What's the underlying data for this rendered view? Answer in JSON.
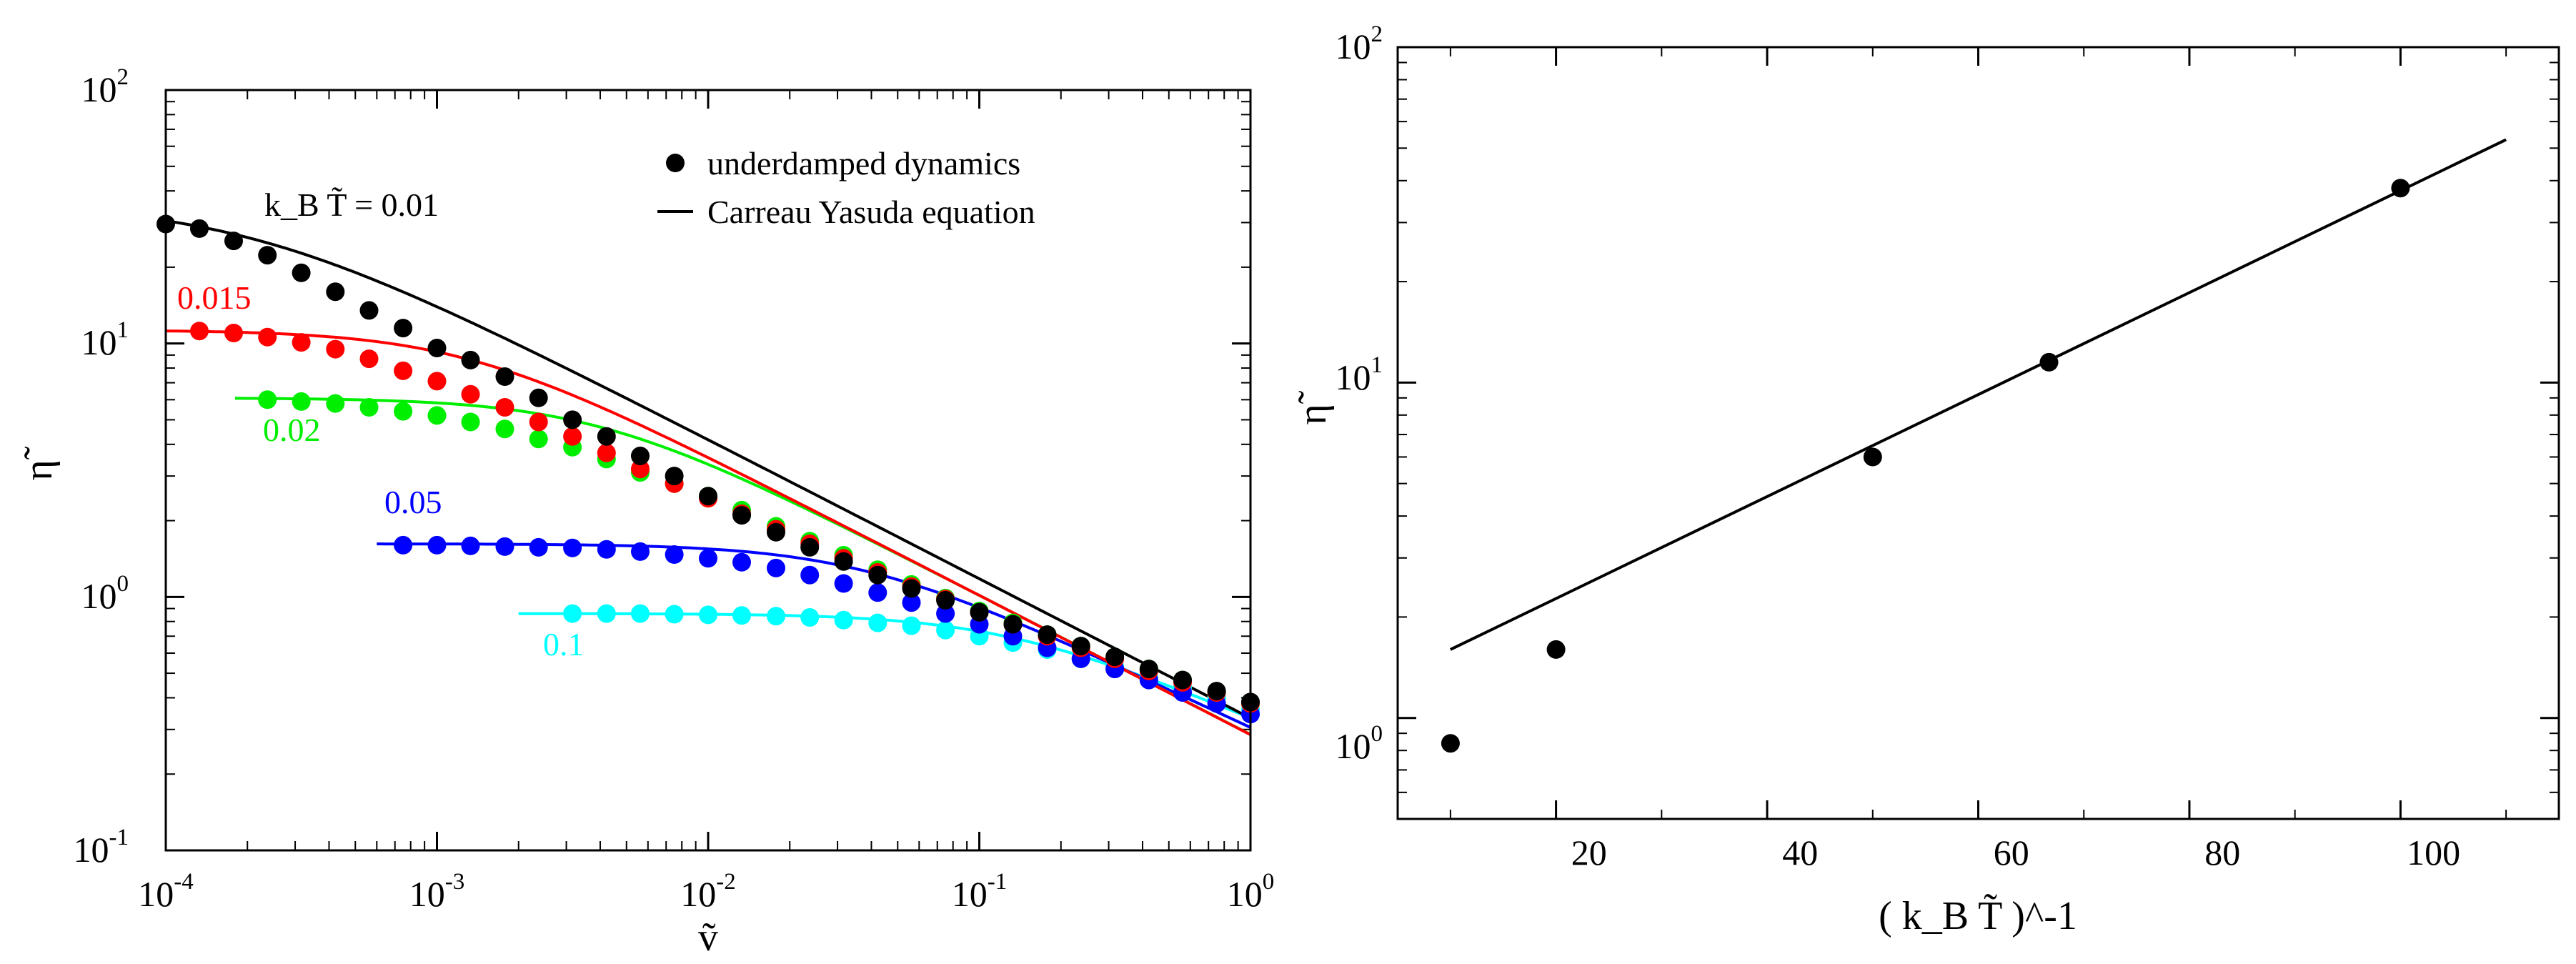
{
  "chart_data": [
    {
      "type": "line",
      "scale": {
        "x": "log",
        "y": "log"
      },
      "xlim": [
        0.0001,
        1
      ],
      "ylim": [
        0.1,
        100
      ],
      "xlabel": "ṽ",
      "ylabel": "η̃",
      "x_ticks": [
        {
          "base": "10",
          "exp": "-4",
          "value": 0.0001
        },
        {
          "base": "10",
          "exp": "-3",
          "value": 0.001
        },
        {
          "base": "10",
          "exp": "-2",
          "value": 0.01
        },
        {
          "base": "10",
          "exp": "-1",
          "value": 0.1
        },
        {
          "base": "10",
          "exp": "0",
          "value": 1
        }
      ],
      "y_ticks": [
        {
          "base": "10",
          "exp": "-1",
          "value": 0.1
        },
        {
          "base": "10",
          "exp": "0",
          "value": 1
        },
        {
          "base": "10",
          "exp": "1",
          "value": 10
        },
        {
          "base": "10",
          "exp": "2",
          "value": 100
        }
      ],
      "legend": {
        "position": "top-right",
        "markers_label": "underdamped dynamics",
        "line_label": "Carreau Yasuda equation"
      },
      "header_label": "k_B T̃ = 0.01",
      "series": [
        {
          "name": "0.01",
          "label": "",
          "color": "#000000",
          "cy": {
            "eta0": 36,
            "etaInf": 0,
            "lambda": 5000,
            "a": 1.2,
            "n": 0.45
          },
          "fit_range": [
            0.0001,
            1
          ],
          "points": [
            [
              0.0001,
              29.6
            ],
            [
              0.000133,
              28.4
            ],
            [
              0.000178,
              25.4
            ],
            [
              0.000237,
              22.3
            ],
            [
              0.000316,
              19.0
            ],
            [
              0.000422,
              16.0
            ],
            [
              0.000562,
              13.5
            ],
            [
              0.00075,
              11.5
            ],
            [
              0.001,
              9.6
            ],
            [
              0.00133,
              8.6
            ],
            [
              0.00178,
              7.4
            ],
            [
              0.00237,
              6.1
            ],
            [
              0.00316,
              5.0
            ],
            [
              0.00422,
              4.3
            ],
            [
              0.00562,
              3.6
            ],
            [
              0.0075,
              3.0
            ],
            [
              0.01,
              2.5
            ],
            [
              0.0133,
              2.1
            ],
            [
              0.0178,
              1.8
            ],
            [
              0.0237,
              1.57
            ],
            [
              0.0316,
              1.38
            ],
            [
              0.0422,
              1.22
            ],
            [
              0.0562,
              1.08
            ],
            [
              0.075,
              0.97
            ],
            [
              0.1,
              0.87
            ],
            [
              0.133,
              0.78
            ],
            [
              0.178,
              0.71
            ],
            [
              0.237,
              0.64
            ],
            [
              0.316,
              0.58
            ],
            [
              0.422,
              0.52
            ],
            [
              0.562,
              0.47
            ],
            [
              0.75,
              0.425
            ],
            [
              1.0,
              0.385
            ]
          ]
        },
        {
          "name": "0.015",
          "label": "0.015",
          "color": "#ff0000",
          "cy": {
            "eta0": 11.3,
            "etaInf": 0,
            "lambda": 800,
            "a": 1.5,
            "n": 0.45
          },
          "fit_range": [
            0.0001,
            1
          ],
          "points": [
            [
              0.000133,
              11.2
            ],
            [
              0.000178,
              11.0
            ],
            [
              0.000237,
              10.6
            ],
            [
              0.000316,
              10.1
            ],
            [
              0.000422,
              9.5
            ],
            [
              0.000562,
              8.7
            ],
            [
              0.00075,
              7.8
            ],
            [
              0.001,
              7.1
            ],
            [
              0.00133,
              6.3
            ],
            [
              0.00178,
              5.6
            ],
            [
              0.00237,
              4.9
            ],
            [
              0.00316,
              4.3
            ],
            [
              0.00422,
              3.7
            ],
            [
              0.00562,
              3.2
            ],
            [
              0.0075,
              2.8
            ],
            [
              0.01,
              2.45
            ],
            [
              0.0133,
              2.13
            ],
            [
              0.0178,
              1.85
            ],
            [
              0.0237,
              1.62
            ],
            [
              0.0316,
              1.42
            ],
            [
              0.0422,
              1.25
            ],
            [
              0.0562,
              1.1
            ],
            [
              0.075,
              0.98
            ],
            [
              0.1,
              0.87
            ],
            [
              0.133,
              0.78
            ],
            [
              0.178,
              0.7
            ],
            [
              0.237,
              0.63
            ],
            [
              0.316,
              0.57
            ],
            [
              0.422,
              0.51
            ],
            [
              0.562,
              0.46
            ],
            [
              0.75,
              0.42
            ],
            [
              1.0,
              0.38
            ]
          ]
        },
        {
          "name": "0.02",
          "label": "0.02",
          "color": "#00ee00",
          "cy": {
            "eta0": 6.1,
            "etaInf": 0,
            "lambda": 260,
            "a": 1.5,
            "n": 0.45
          },
          "fit_range": [
            0.00018,
            1
          ],
          "points": [
            [
              0.000237,
              6.0
            ],
            [
              0.000316,
              5.9
            ],
            [
              0.000422,
              5.8
            ],
            [
              0.000562,
              5.6
            ],
            [
              0.00075,
              5.4
            ],
            [
              0.001,
              5.2
            ],
            [
              0.00133,
              4.9
            ],
            [
              0.00178,
              4.6
            ],
            [
              0.00237,
              4.2
            ],
            [
              0.00316,
              3.9
            ],
            [
              0.00422,
              3.5
            ],
            [
              0.00562,
              3.1
            ],
            [
              0.0075,
              2.8
            ],
            [
              0.01,
              2.5
            ],
            [
              0.0133,
              2.2
            ],
            [
              0.0178,
              1.9
            ],
            [
              0.0237,
              1.66
            ],
            [
              0.0316,
              1.46
            ],
            [
              0.0422,
              1.28
            ],
            [
              0.0562,
              1.12
            ],
            [
              0.075,
              0.99
            ],
            [
              0.1,
              0.88
            ],
            [
              0.133,
              0.79
            ],
            [
              0.178,
              0.71
            ],
            [
              0.237,
              0.64
            ],
            [
              0.316,
              0.58
            ],
            [
              0.422,
              0.52
            ],
            [
              0.562,
              0.47
            ],
            [
              0.75,
              0.42
            ],
            [
              1.0,
              0.38
            ]
          ]
        },
        {
          "name": "0.05",
          "label": "0.05",
          "color": "#0000ff",
          "cy": {
            "eta0": 1.62,
            "etaInf": 0,
            "lambda": 28,
            "a": 1.5,
            "n": 0.5
          },
          "fit_range": [
            0.0006,
            1
          ],
          "points": [
            [
              0.00075,
              1.6
            ],
            [
              0.001,
              1.6
            ],
            [
              0.00133,
              1.59
            ],
            [
              0.00178,
              1.58
            ],
            [
              0.00237,
              1.57
            ],
            [
              0.00316,
              1.56
            ],
            [
              0.00422,
              1.54
            ],
            [
              0.00562,
              1.51
            ],
            [
              0.0075,
              1.47
            ],
            [
              0.01,
              1.42
            ],
            [
              0.0133,
              1.37
            ],
            [
              0.0178,
              1.3
            ],
            [
              0.0237,
              1.22
            ],
            [
              0.0316,
              1.13
            ],
            [
              0.0422,
              1.04
            ],
            [
              0.0562,
              0.95
            ],
            [
              0.075,
              0.86
            ],
            [
              0.1,
              0.78
            ],
            [
              0.133,
              0.7
            ],
            [
              0.178,
              0.63
            ],
            [
              0.237,
              0.57
            ],
            [
              0.316,
              0.52
            ],
            [
              0.422,
              0.47
            ],
            [
              0.562,
              0.42
            ],
            [
              0.75,
              0.38
            ],
            [
              1.0,
              0.345
            ]
          ]
        },
        {
          "name": "0.1",
          "label": "0.1",
          "color": "#00ffff",
          "cy": {
            "eta0": 0.86,
            "etaInf": 0,
            "lambda": 8,
            "a": 1.5,
            "n": 0.55
          },
          "fit_range": [
            0.002,
            1
          ],
          "points": [
            [
              0.00316,
              0.86
            ],
            [
              0.00422,
              0.86
            ],
            [
              0.00562,
              0.86
            ],
            [
              0.0075,
              0.855
            ],
            [
              0.01,
              0.85
            ],
            [
              0.0133,
              0.845
            ],
            [
              0.0178,
              0.84
            ],
            [
              0.0237,
              0.83
            ],
            [
              0.0316,
              0.81
            ],
            [
              0.0422,
              0.79
            ],
            [
              0.0562,
              0.77
            ],
            [
              0.075,
              0.74
            ],
            [
              0.1,
              0.7
            ],
            [
              0.133,
              0.66
            ],
            [
              0.178,
              0.62
            ],
            [
              0.237,
              0.57
            ],
            [
              0.316,
              0.53
            ],
            [
              0.422,
              0.48
            ],
            [
              0.562,
              0.44
            ],
            [
              0.75,
              0.4
            ],
            [
              1.0,
              0.36
            ]
          ]
        }
      ]
    },
    {
      "type": "scatter",
      "scale": {
        "x": "linear",
        "y": "log"
      },
      "xlim": [
        5,
        115
      ],
      "ylim": [
        0.5,
        100
      ],
      "xlabel": "( k_B T̃ )^-1",
      "ylabel": "η̃",
      "x_ticks": [
        "20",
        "40",
        "60",
        "80",
        "100"
      ],
      "y_ticks": [
        {
          "base": "10",
          "exp": "0",
          "value": 1
        },
        {
          "base": "10",
          "exp": "1",
          "value": 10
        },
        {
          "base": "10",
          "exp": "2",
          "value": 100
        }
      ],
      "points": [
        [
          10,
          0.84
        ],
        [
          20,
          1.6
        ],
        [
          50,
          6.0
        ],
        [
          66.7,
          11.5
        ],
        [
          100,
          38
        ]
      ],
      "fit_line": [
        [
          10,
          1.6
        ],
        [
          110,
          53
        ]
      ]
    }
  ]
}
